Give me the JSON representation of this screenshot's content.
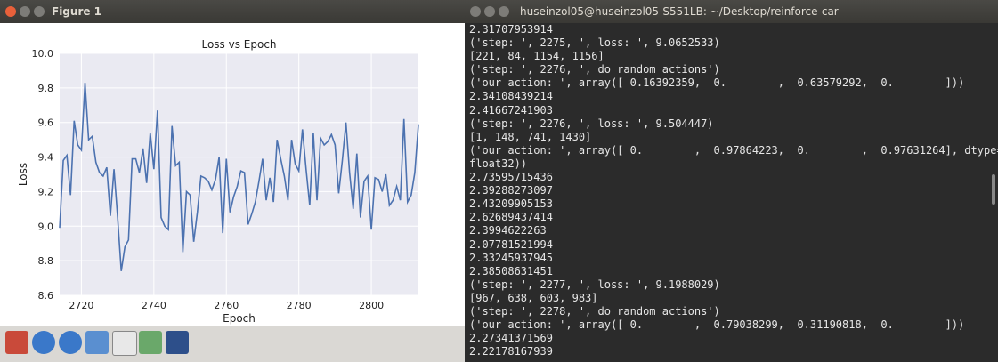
{
  "figure_window": {
    "title": "Figure 1"
  },
  "chart_data": {
    "type": "line",
    "title": "Loss vs Epoch",
    "x_label": "Epoch",
    "y_label": "Loss",
    "x": [
      2714,
      2715,
      2716,
      2717,
      2718,
      2719,
      2720,
      2721,
      2722,
      2723,
      2724,
      2725,
      2726,
      2727,
      2728,
      2729,
      2730,
      2731,
      2732,
      2733,
      2734,
      2735,
      2736,
      2737,
      2738,
      2739,
      2740,
      2741,
      2742,
      2743,
      2744,
      2745,
      2746,
      2747,
      2748,
      2749,
      2750,
      2751,
      2752,
      2753,
      2754,
      2755,
      2756,
      2757,
      2758,
      2759,
      2760,
      2761,
      2762,
      2763,
      2764,
      2765,
      2766,
      2767,
      2768,
      2769,
      2770,
      2771,
      2772,
      2773,
      2774,
      2775,
      2776,
      2777,
      2778,
      2779,
      2780,
      2781,
      2782,
      2783,
      2784,
      2785,
      2786,
      2787,
      2788,
      2789,
      2790,
      2791,
      2792,
      2793,
      2794,
      2795,
      2796,
      2797,
      2798,
      2799,
      2800,
      2801,
      2802,
      2803,
      2804,
      2805,
      2806,
      2807,
      2808,
      2809,
      2810,
      2811,
      2812,
      2813
    ],
    "series": [
      {
        "name": "loss",
        "color": "#4c72b0",
        "values": [
          8.99,
          9.38,
          9.41,
          9.18,
          9.61,
          9.47,
          9.44,
          9.83,
          9.5,
          9.52,
          9.37,
          9.31,
          9.29,
          9.34,
          9.06,
          9.33,
          9.05,
          8.74,
          8.88,
          8.92,
          9.39,
          9.39,
          9.31,
          9.45,
          9.25,
          9.54,
          9.33,
          9.67,
          9.05,
          9.0,
          8.98,
          9.58,
          9.35,
          9.37,
          8.85,
          9.2,
          9.18,
          8.91,
          9.08,
          9.29,
          9.28,
          9.26,
          9.21,
          9.27,
          9.4,
          8.96,
          9.39,
          9.08,
          9.17,
          9.23,
          9.32,
          9.31,
          9.01,
          9.07,
          9.14,
          9.26,
          9.39,
          9.15,
          9.28,
          9.14,
          9.5,
          9.39,
          9.29,
          9.15,
          9.5,
          9.36,
          9.32,
          9.56,
          9.33,
          9.12,
          9.54,
          9.15,
          9.51,
          9.47,
          9.49,
          9.53,
          9.47,
          9.19,
          9.38,
          9.6,
          9.31,
          9.1,
          9.42,
          9.05,
          9.26,
          9.29,
          8.98,
          9.28,
          9.27,
          9.2,
          9.3,
          9.12,
          9.15,
          9.23,
          9.15,
          9.62,
          9.14,
          9.18,
          9.31,
          9.59
        ]
      }
    ],
    "xlim": [
      2714,
      2813
    ],
    "xticks": [
      2720,
      2740,
      2760,
      2780,
      2800
    ],
    "ylim": [
      8.6,
      10.0
    ],
    "yticks": [
      8.6,
      8.8,
      {
        "value": 9,
        "label": "9.0"
      },
      9.2,
      9.4,
      9.6,
      9.8,
      {
        "value": 10,
        "label": "10.0"
      }
    ],
    "grid": true
  },
  "terminal": {
    "title": "huseinzol05@huseinzol05-S551LB: ~/Desktop/reinforce-car",
    "lines": [
      "2.31707953914",
      "('step: ', 2275, ', loss: ', 9.0652533)",
      "[221, 84, 1154, 1156]",
      "('step: ', 2276, ', do random actions')",
      "('our action: ', array([ 0.16392359,  0.        ,  0.63579292,  0.        ]))",
      "2.34108439214",
      "2.41667241903",
      "('step: ', 2276, ', loss: ', 9.504447)",
      "[1, 148, 741, 1430]",
      "('our action: ', array([ 0.        ,  0.97864223,  0.        ,  0.97631264], dtype=",
      "float32))",
      "2.73595715436",
      "2.39288273097",
      "2.43209905153",
      "2.62689437414",
      "2.3994622263",
      "2.07781521994",
      "2.33245937945",
      "2.38508631451",
      "('step: ', 2277, ', loss: ', 9.1988029)",
      "[967, 638, 603, 983]",
      "('step: ', 2278, ', do random actions')",
      "('our action: ', array([ 0.        ,  0.79038299,  0.31190818,  0.        ]))",
      "2.27341371569",
      "2.22178167939"
    ]
  }
}
